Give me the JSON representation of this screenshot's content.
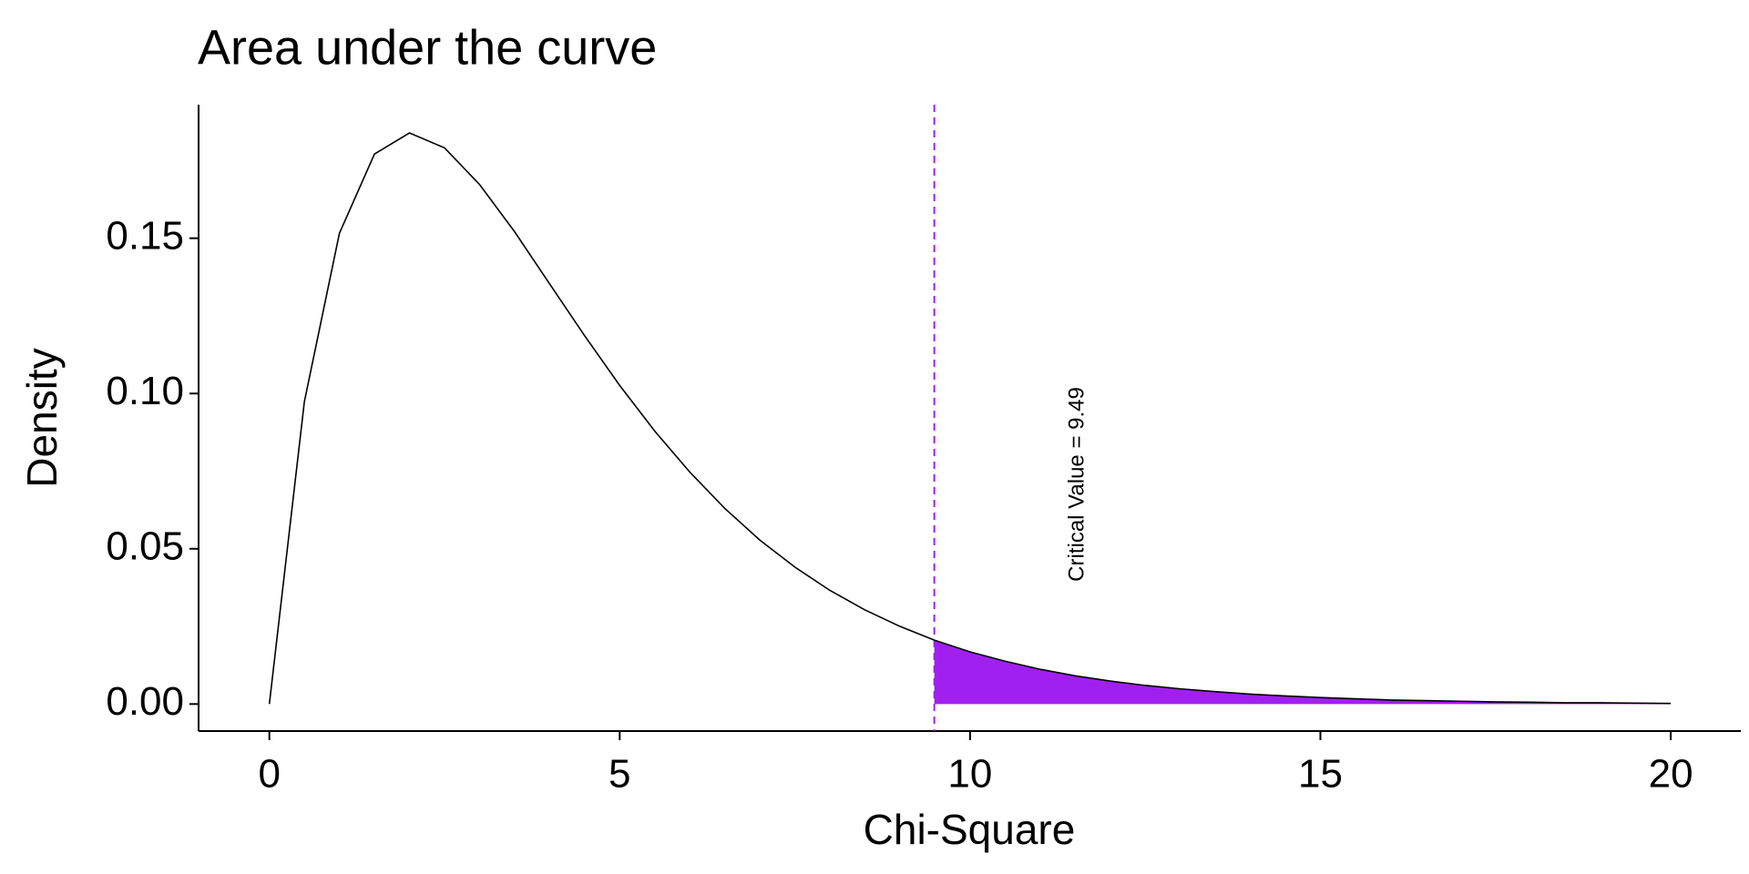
{
  "chart_data": {
    "type": "area-curve",
    "title": "Area under the curve",
    "xlabel": "Chi-Square",
    "ylabel": "Density",
    "x": [
      0,
      0.5,
      1,
      1.5,
      2,
      2.5,
      3,
      3.5,
      4,
      4.5,
      5,
      5.5,
      6,
      6.5,
      7,
      7.5,
      8,
      8.5,
      9,
      9.5,
      10,
      10.5,
      11,
      11.5,
      12,
      12.5,
      13,
      13.5,
      14,
      14.5,
      15,
      15.5,
      16,
      16.5,
      17,
      17.5,
      18,
      18.5,
      19,
      19.5,
      20
    ],
    "values": [
      0,
      0.0974,
      0.1516,
      0.1771,
      0.1839,
      0.1791,
      0.1673,
      0.1521,
      0.1353,
      0.1186,
      0.1026,
      0.0879,
      0.0747,
      0.063,
      0.0528,
      0.0441,
      0.0366,
      0.0303,
      0.025,
      0.0205,
      0.0168,
      0.0138,
      0.0112,
      0.0091,
      0.0074,
      0.006,
      0.0049,
      0.004,
      0.0032,
      0.0026,
      0.0021,
      0.0017,
      0.0013,
      0.0011,
      0.0009,
      0.0007,
      0.0006,
      0.0004,
      0.0004,
      0.0003,
      0.0002
    ],
    "color": "#000000",
    "shaded": {
      "x": [
        9.49,
        10,
        10.5,
        11,
        11.5,
        12,
        12.5,
        13,
        13.5,
        14,
        14.5,
        15,
        15.5,
        16,
        16.5,
        17,
        17.5,
        18,
        18.5,
        19,
        19.5,
        20
      ],
      "values": [
        0.0206,
        0.0168,
        0.0138,
        0.0112,
        0.0091,
        0.0074,
        0.006,
        0.0049,
        0.004,
        0.0032,
        0.0026,
        0.0021,
        0.0017,
        0.0013,
        0.0011,
        0.0009,
        0.0007,
        0.0006,
        0.0004,
        0.0004,
        0.0003,
        0.0002
      ],
      "color": "#a020f0"
    },
    "vline": {
      "value": 9.49,
      "color": "#a020f0"
    },
    "annotation": "Critical Value = 9.49",
    "xlim": [
      -1.01,
      21.0
    ],
    "ylim": [
      -0.0087,
      0.193
    ],
    "xticks": [
      0,
      5,
      10,
      15,
      20
    ],
    "yticks": [
      {
        "value": 0,
        "label": "0.00"
      },
      {
        "value": 0.05,
        "label": "0.05"
      },
      {
        "value": 0.1,
        "label": "0.10"
      },
      {
        "value": 0.15,
        "label": "0.15"
      }
    ],
    "grid": false
  }
}
